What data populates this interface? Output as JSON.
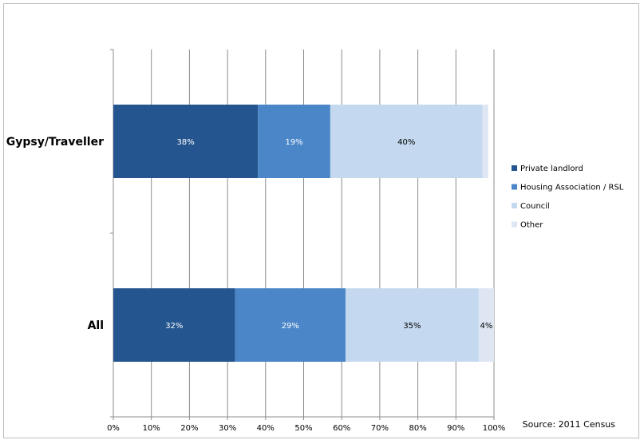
{
  "chart_data": {
    "type": "bar",
    "orientation": "horizontal",
    "stacked": true,
    "categories": [
      "Gypsy/Traveller",
      "All"
    ],
    "series": [
      {
        "name": "Private landlord",
        "values": [
          38,
          32
        ],
        "labels": [
          "38%",
          "32%"
        ],
        "color": "#24558f"
      },
      {
        "name": "Housing Association / RSL",
        "values": [
          19,
          29
        ],
        "labels": [
          "19%",
          "29%"
        ],
        "color": "#4a86c8"
      },
      {
        "name": "Council",
        "values": [
          40,
          35
        ],
        "labels": [
          "40%",
          "35%"
        ],
        "color": "#c4d9ef"
      },
      {
        "name": "Other",
        "values": [
          1.5,
          4
        ],
        "labels": [
          "",
          "4%"
        ],
        "color": "#dde6f2"
      }
    ],
    "xlim": [
      0,
      100
    ],
    "xticks": [
      "0%",
      "10%",
      "20%",
      "30%",
      "40%",
      "50%",
      "60%",
      "70%",
      "80%",
      "90%",
      "100%"
    ],
    "grid": true,
    "legend_position": "right",
    "source": "Source: 2011 Census"
  }
}
